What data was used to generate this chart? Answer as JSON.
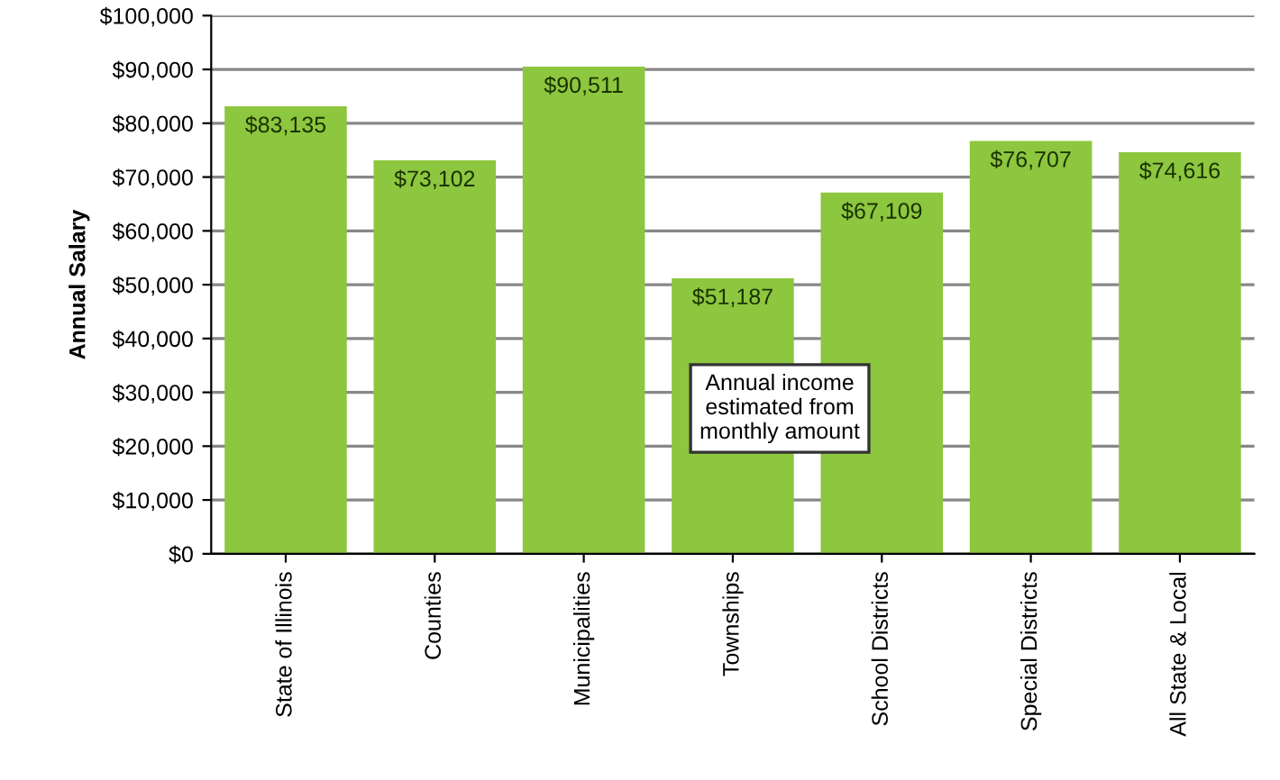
{
  "chart_data": {
    "type": "bar",
    "ylabel": "Annual Salary",
    "categories": [
      "State of Illinois",
      "Counties",
      "Municipalities",
      "Townships",
      "School Districts",
      "Special Districts",
      "All State & Local"
    ],
    "values": [
      83135,
      73102,
      90511,
      51187,
      67109,
      76707,
      74616
    ],
    "value_labels": [
      "$83,135",
      "$73,102",
      "$90,511",
      "$51,187",
      "$67,109",
      "$76,707",
      "$74,616"
    ],
    "color": "#8dc63f",
    "ylim": [
      0,
      100000
    ],
    "yticks": [
      {
        "value": 0,
        "label": "$0"
      },
      {
        "value": 10000,
        "label": "$10,000"
      },
      {
        "value": 20000,
        "label": "$20,000"
      },
      {
        "value": 30000,
        "label": "$30,000"
      },
      {
        "value": 40000,
        "label": "$40,000"
      },
      {
        "value": 50000,
        "label": "$50,000"
      },
      {
        "value": 60000,
        "label": "$60,000"
      },
      {
        "value": 70000,
        "label": "$70,000"
      },
      {
        "value": 80000,
        "label": "$80,000"
      },
      {
        "value": 90000,
        "label": "$90,000"
      },
      {
        "value": 100000,
        "label": "$100,000"
      }
    ],
    "grid": "y",
    "annotations": [
      "Annual income\nestimated from\nmonthly amount"
    ]
  }
}
